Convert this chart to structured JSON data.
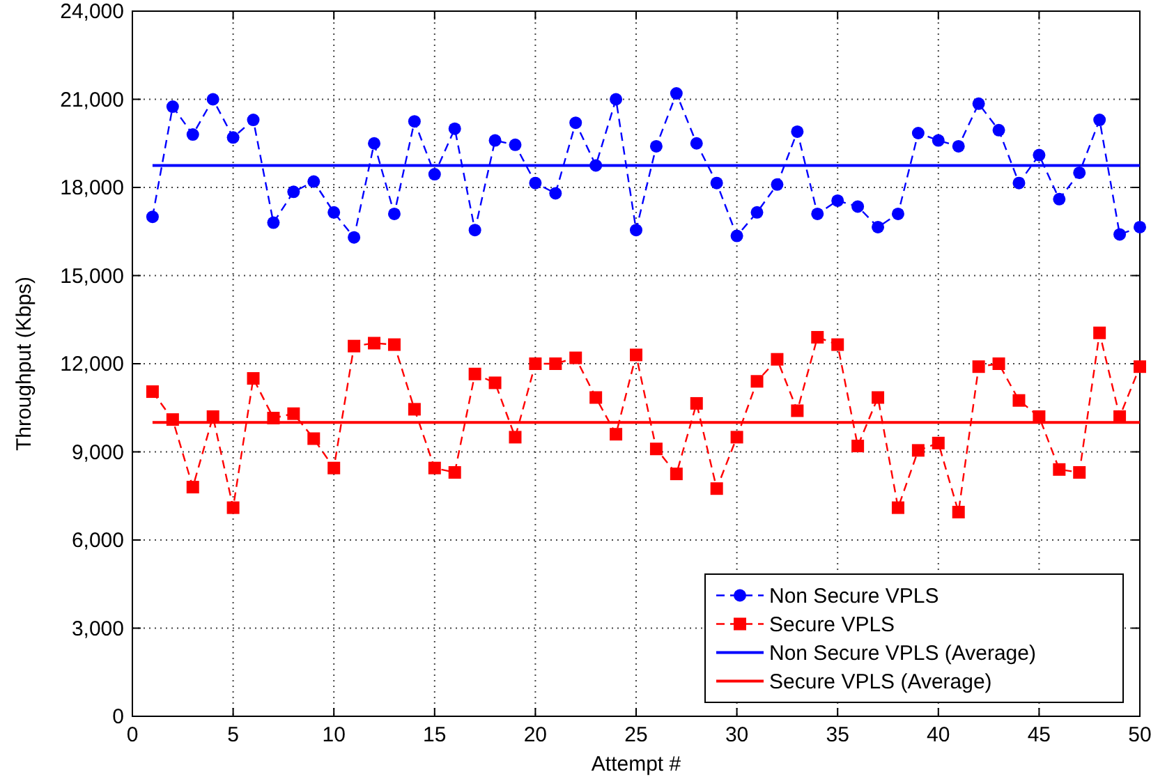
{
  "chart_data": {
    "type": "line",
    "xlabel": "Attempt #",
    "ylabel": "Throughput (Kbps)",
    "xlim": [
      0,
      50
    ],
    "xticks": [
      0,
      5,
      10,
      15,
      20,
      25,
      30,
      35,
      40,
      45,
      50
    ],
    "ylim": [
      0,
      24000
    ],
    "yticks": [
      {
        "value": 0,
        "label": "0"
      },
      {
        "value": 3000,
        "label": "3,000"
      },
      {
        "value": 6000,
        "label": "6,000"
      },
      {
        "value": 9000,
        "label": "9,000"
      },
      {
        "value": 12000,
        "label": "12,000"
      },
      {
        "value": 15000,
        "label": "15,000"
      },
      {
        "value": 18000,
        "label": "18,000"
      },
      {
        "value": 21000,
        "label": "21,000"
      },
      {
        "value": 24000,
        "label": "24,000"
      }
    ],
    "grid": true,
    "legend": "bottom right",
    "x": [
      1,
      2,
      3,
      4,
      5,
      6,
      7,
      8,
      9,
      10,
      11,
      12,
      13,
      14,
      15,
      16,
      17,
      18,
      19,
      20,
      21,
      22,
      23,
      24,
      25,
      26,
      27,
      28,
      29,
      30,
      31,
      32,
      33,
      34,
      35,
      36,
      37,
      38,
      39,
      40,
      41,
      42,
      43,
      44,
      45,
      46,
      47,
      48,
      49,
      50
    ],
    "series": [
      {
        "name": "Non Secure VPLS",
        "color": "#0000ff",
        "marker": "circle",
        "line_style": "dashed",
        "values": [
          17000,
          20750,
          19800,
          21000,
          19700,
          20300,
          16800,
          17850,
          18200,
          17150,
          16300,
          19500,
          17100,
          20250,
          18450,
          20000,
          16550,
          19600,
          19450,
          18150,
          17800,
          20200,
          18750,
          21000,
          16550,
          19400,
          21200,
          19500,
          18150,
          16350,
          17150,
          18100,
          19900,
          17100,
          17550,
          17350,
          16650,
          17100,
          19850,
          19600,
          19400,
          20850,
          19950,
          18150,
          19100,
          17600,
          18500,
          20300,
          16400,
          16650
        ]
      },
      {
        "name": "Secure VPLS",
        "color": "#ff0000",
        "marker": "square",
        "line_style": "dashed",
        "values": [
          11050,
          10100,
          7800,
          10200,
          7100,
          11500,
          10150,
          10300,
          9450,
          8450,
          12600,
          12700,
          12650,
          10450,
          8450,
          8300,
          11650,
          11350,
          9500,
          12000,
          12000,
          12200,
          10850,
          9600,
          12300,
          9100,
          8250,
          10650,
          7750,
          9500,
          11400,
          12150,
          10400,
          12900,
          12650,
          9200,
          10850,
          7100,
          9050,
          9300,
          6950,
          11900,
          12000,
          10750,
          10200,
          8400,
          8300,
          13050,
          10200,
          11900
        ]
      },
      {
        "name": "Non Secure VPLS (Average)",
        "color": "#0000ff",
        "marker": "none",
        "line_style": "solid",
        "values": [
          18750,
          18750,
          18750,
          18750,
          18750,
          18750,
          18750,
          18750,
          18750,
          18750,
          18750,
          18750,
          18750,
          18750,
          18750,
          18750,
          18750,
          18750,
          18750,
          18750,
          18750,
          18750,
          18750,
          18750,
          18750,
          18750,
          18750,
          18750,
          18750,
          18750,
          18750,
          18750,
          18750,
          18750,
          18750,
          18750,
          18750,
          18750,
          18750,
          18750,
          18750,
          18750,
          18750,
          18750,
          18750,
          18750,
          18750,
          18750,
          18750,
          18750
        ]
      },
      {
        "name": "Secure VPLS (Average)",
        "color": "#ff0000",
        "marker": "none",
        "line_style": "solid",
        "values": [
          10000,
          10000,
          10000,
          10000,
          10000,
          10000,
          10000,
          10000,
          10000,
          10000,
          10000,
          10000,
          10000,
          10000,
          10000,
          10000,
          10000,
          10000,
          10000,
          10000,
          10000,
          10000,
          10000,
          10000,
          10000,
          10000,
          10000,
          10000,
          10000,
          10000,
          10000,
          10000,
          10000,
          10000,
          10000,
          10000,
          10000,
          10000,
          10000,
          10000,
          10000,
          10000,
          10000,
          10000,
          10000,
          10000,
          10000,
          10000,
          10000,
          10000
        ]
      }
    ]
  }
}
